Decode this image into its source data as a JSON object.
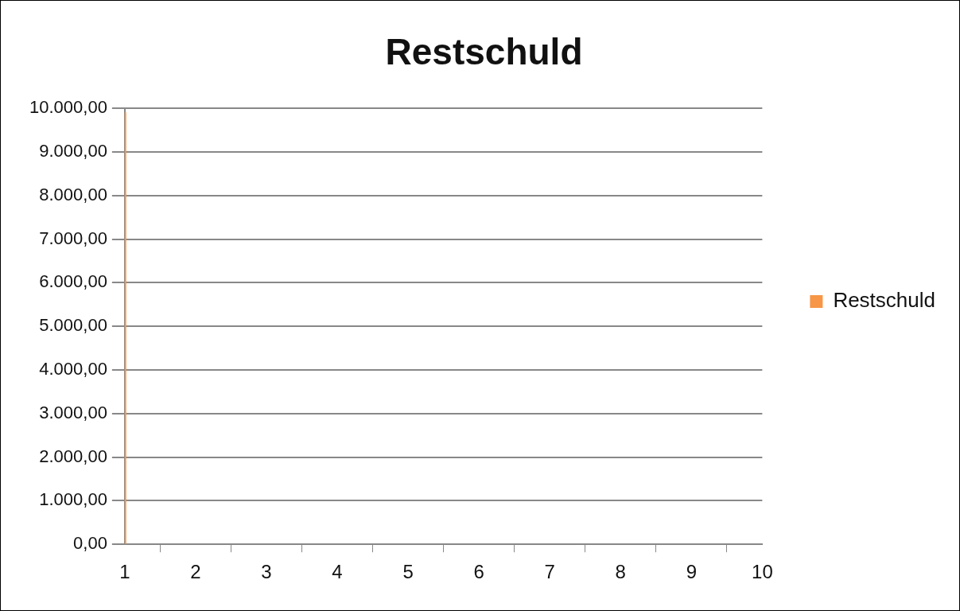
{
  "chart_data": {
    "type": "bar",
    "title": "Restschuld",
    "x": [
      1
    ],
    "series": [
      {
        "name": "Restschuld",
        "color": "#f79646",
        "values": [
          9900
        ]
      }
    ],
    "xlim": [
      1,
      10
    ],
    "xticks": [
      1,
      2,
      3,
      4,
      5,
      6,
      7,
      8,
      9,
      10
    ],
    "ylim": [
      0,
      10000
    ],
    "yticks": [
      {
        "value": 0,
        "label": "0,00"
      },
      {
        "value": 1000,
        "label": "1.000,00"
      },
      {
        "value": 2000,
        "label": "2.000,00"
      },
      {
        "value": 3000,
        "label": "3.000,00"
      },
      {
        "value": 4000,
        "label": "4.000,00"
      },
      {
        "value": 5000,
        "label": "5.000,00"
      },
      {
        "value": 6000,
        "label": "6.000,00"
      },
      {
        "value": 7000,
        "label": "7.000,00"
      },
      {
        "value": 8000,
        "label": "8.000,00"
      },
      {
        "value": 9000,
        "label": "9.000,00"
      },
      {
        "value": 10000,
        "label": "10.000,00"
      }
    ],
    "grid": "y",
    "legend": "right"
  }
}
